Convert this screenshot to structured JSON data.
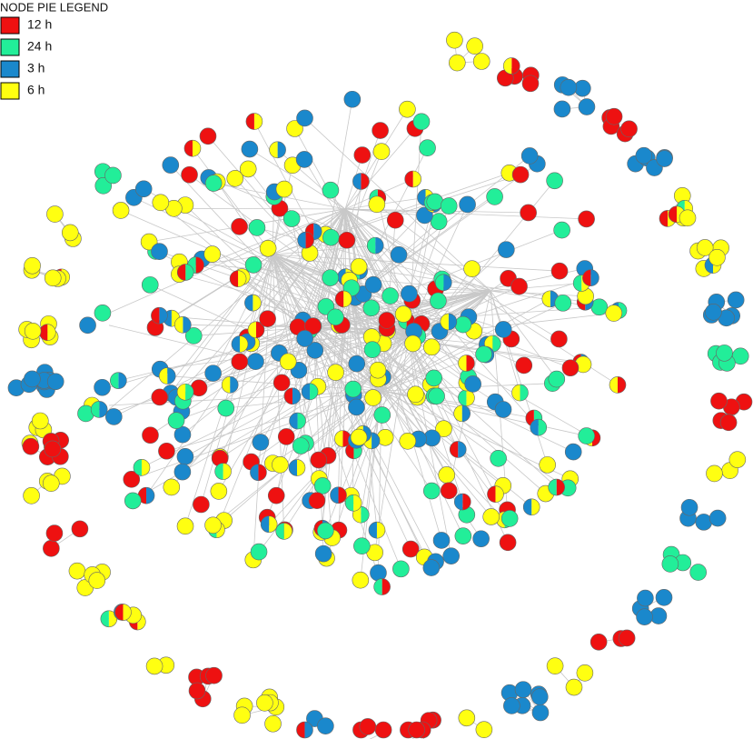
{
  "legend": {
    "title": "NODE PIE LEGEND",
    "items": [
      {
        "label": "12 h",
        "color": "#ee1111"
      },
      {
        "label": "24 h",
        "color": "#22ee99"
      },
      {
        "label": "3 h",
        "color": "#1a88cc"
      },
      {
        "label": "6 h",
        "color": "#ffff11"
      }
    ]
  }
}
